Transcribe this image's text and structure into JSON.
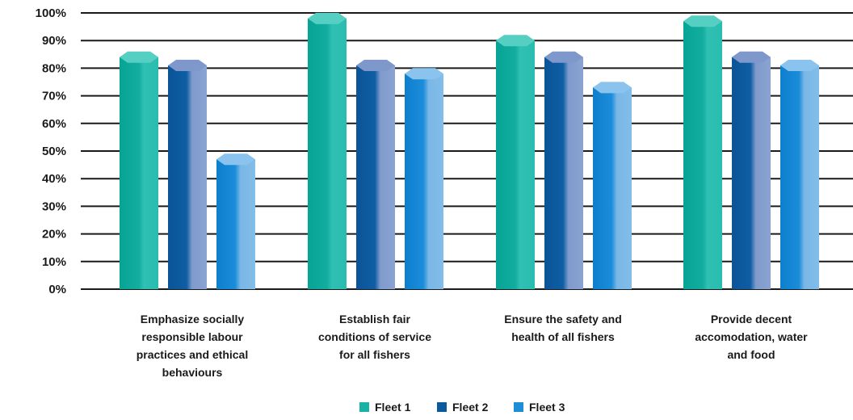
{
  "chart_data": {
    "type": "bar",
    "title": "",
    "xlabel": "",
    "ylabel": "",
    "ylim": [
      0,
      100
    ],
    "yticks": [
      "0%",
      "10%",
      "20%",
      "30%",
      "40%",
      "50%",
      "60%",
      "70%",
      "80%",
      "90%",
      "100%"
    ],
    "grid": true,
    "legend_position": "bottom-center",
    "categories": [
      [
        "Emphasize socially",
        "responsible labour",
        "practices and ethical",
        "behaviours"
      ],
      [
        "Establish fair",
        "conditions of service",
        "for all fishers"
      ],
      [
        "Ensure the safety and",
        "health of all fishers"
      ],
      [
        "Provide decent",
        "accomodation, water",
        "and food"
      ]
    ],
    "series": [
      {
        "name": "Fleet 1",
        "values": [
          84,
          98,
          90,
          97
        ],
        "color": "#1bb1a6"
      },
      {
        "name": "Fleet 2",
        "values": [
          81,
          81,
          84,
          84
        ],
        "color": "#0b5a9e"
      },
      {
        "name": "Fleet 3",
        "values": [
          47,
          78,
          73,
          81
        ],
        "color": "#1e8fd6"
      }
    ]
  }
}
